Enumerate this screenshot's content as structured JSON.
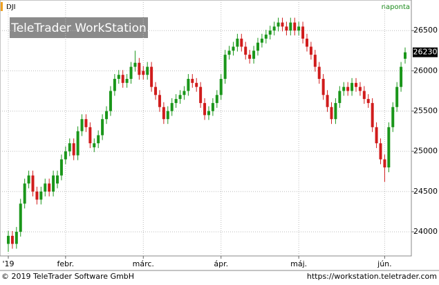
{
  "chart_data": {
    "type": "candlestick",
    "title": "DJI",
    "period": "naponta",
    "watermark": "TeleTrader WorkStation",
    "footer_left": "© 2019 TeleTrader Software GmbH",
    "footer_right": "https://workstation.teletrader.com",
    "last_price": 26230,
    "categories": [
      "'19",
      null,
      null,
      null,
      null,
      null,
      null,
      null,
      null,
      null,
      null,
      null,
      null,
      null,
      "febr.",
      null,
      null,
      null,
      null,
      null,
      null,
      null,
      null,
      null,
      null,
      null,
      null,
      null,
      null,
      null,
      null,
      null,
      null,
      "márc.",
      null,
      null,
      null,
      null,
      null,
      null,
      null,
      null,
      null,
      null,
      null,
      null,
      null,
      null,
      null,
      null,
      null,
      null,
      "ápr.",
      null,
      null,
      null,
      null,
      null,
      null,
      null,
      null,
      null,
      null,
      null,
      null,
      null,
      null,
      null,
      null,
      null,
      null,
      "máj.",
      null,
      null,
      null,
      null,
      null,
      null,
      null,
      null,
      null,
      null,
      null,
      null,
      null,
      null,
      null,
      null,
      null,
      null,
      null,
      null,
      "jún.",
      null,
      null,
      null,
      null,
      null
    ],
    "open": [
      23850,
      23950,
      23850,
      24000,
      24350,
      24600,
      24700,
      24500,
      24400,
      24500,
      24600,
      24500,
      24600,
      24700,
      24900,
      25000,
      25100,
      24950,
      25250,
      25400,
      25300,
      25050,
      25100,
      25200,
      25400,
      25500,
      25750,
      25900,
      25950,
      25850,
      25900,
      26050,
      26100,
      26000,
      25950,
      26050,
      25800,
      25700,
      25550,
      25400,
      25500,
      25600,
      25650,
      25700,
      25750,
      25900,
      25850,
      25800,
      25600,
      25450,
      25500,
      25600,
      25700,
      25900,
      26200,
      26250,
      26300,
      26400,
      26300,
      26200,
      26150,
      26250,
      26350,
      26400,
      26450,
      26500,
      26550,
      26600,
      26550,
      26500,
      26600,
      26500,
      26550,
      26400,
      26300,
      26200,
      26050,
      25900,
      25700,
      25550,
      25400,
      25600,
      25750,
      25800,
      25750,
      25850,
      25800,
      25750,
      25650,
      25600,
      25300,
      25100,
      24900,
      24800,
      25300,
      25550,
      25800,
      26150
    ],
    "high": [
      24010,
      24010,
      24060,
      24410,
      24660,
      24760,
      24760,
      24560,
      24560,
      24660,
      24660,
      24760,
      24760,
      24960,
      25060,
      25160,
      25160,
      25310,
      25460,
      25460,
      25360,
      25160,
      25260,
      25460,
      25560,
      25810,
      25960,
      26010,
      26010,
      25960,
      26110,
      26250,
      26160,
      26060,
      26110,
      26110,
      25860,
      25760,
      25610,
      25560,
      25660,
      25710,
      25760,
      25810,
      25960,
      25960,
      25910,
      25860,
      25660,
      25560,
      25660,
      25760,
      25960,
      26260,
      26310,
      26360,
      26460,
      26460,
      26360,
      26260,
      26310,
      26410,
      26460,
      26510,
      26560,
      26610,
      26660,
      26660,
      26610,
      26660,
      26660,
      26610,
      26610,
      26460,
      26360,
      26260,
      26110,
      25960,
      25760,
      25610,
      25660,
      25810,
      25860,
      25860,
      25910,
      25910,
      25860,
      25810,
      25710,
      25660,
      25360,
      25160,
      24960,
      25360,
      25610,
      25860,
      26110,
      26290
    ],
    "low": [
      23750,
      23790,
      23790,
      23940,
      24290,
      24540,
      24440,
      24340,
      24340,
      24440,
      24440,
      24440,
      24540,
      24640,
      24840,
      24940,
      24890,
      24890,
      25190,
      25240,
      25040,
      24990,
      25040,
      25140,
      25340,
      25440,
      25690,
      25840,
      25790,
      25790,
      25840,
      25990,
      25890,
      25890,
      25890,
      25740,
      25640,
      25490,
      25340,
      25340,
      25440,
      25540,
      25590,
      25640,
      25690,
      25790,
      25740,
      25540,
      25390,
      25390,
      25440,
      25540,
      25640,
      25840,
      26140,
      26190,
      26240,
      26240,
      26140,
      26090,
      26090,
      26190,
      26290,
      26340,
      26390,
      26440,
      26490,
      26490,
      26440,
      26440,
      26440,
      26440,
      26340,
      26240,
      26140,
      25990,
      25840,
      25640,
      25490,
      25340,
      25340,
      25540,
      25690,
      25690,
      25690,
      25740,
      25690,
      25590,
      25540,
      25240,
      25040,
      24840,
      24620,
      24740,
      25240,
      25490,
      25740,
      26090
    ],
    "close": [
      23950,
      23850,
      24000,
      24350,
      24600,
      24700,
      24500,
      24400,
      24500,
      24600,
      24500,
      24700,
      24700,
      24900,
      25000,
      25100,
      24950,
      25250,
      25400,
      25300,
      25100,
      25100,
      25200,
      25400,
      25500,
      25750,
      25900,
      25950,
      25850,
      25900,
      26050,
      26100,
      25950,
      25950,
      26050,
      25800,
      25700,
      25550,
      25400,
      25500,
      25600,
      25650,
      25700,
      25750,
      25900,
      25850,
      25800,
      25600,
      25450,
      25500,
      25600,
      25700,
      25900,
      26200,
      26250,
      26300,
      26400,
      26300,
      26200,
      26150,
      26250,
      26350,
      26400,
      26450,
      26500,
      26550,
      26600,
      26550,
      26500,
      26600,
      26500,
      26550,
      26400,
      26300,
      26200,
      26050,
      25900,
      25700,
      25550,
      25400,
      25600,
      25750,
      25800,
      25750,
      25850,
      25800,
      25750,
      25650,
      25600,
      25300,
      25100,
      24900,
      24800,
      25300,
      25550,
      25800,
      26050,
      26230
    ],
    "up_color": "#1a961a",
    "down_color": "#d01c1c",
    "ylim": [
      23700,
      26880
    ],
    "yticks": [
      24000,
      24500,
      25000,
      25500,
      26000,
      26500
    ],
    "grid": true
  }
}
